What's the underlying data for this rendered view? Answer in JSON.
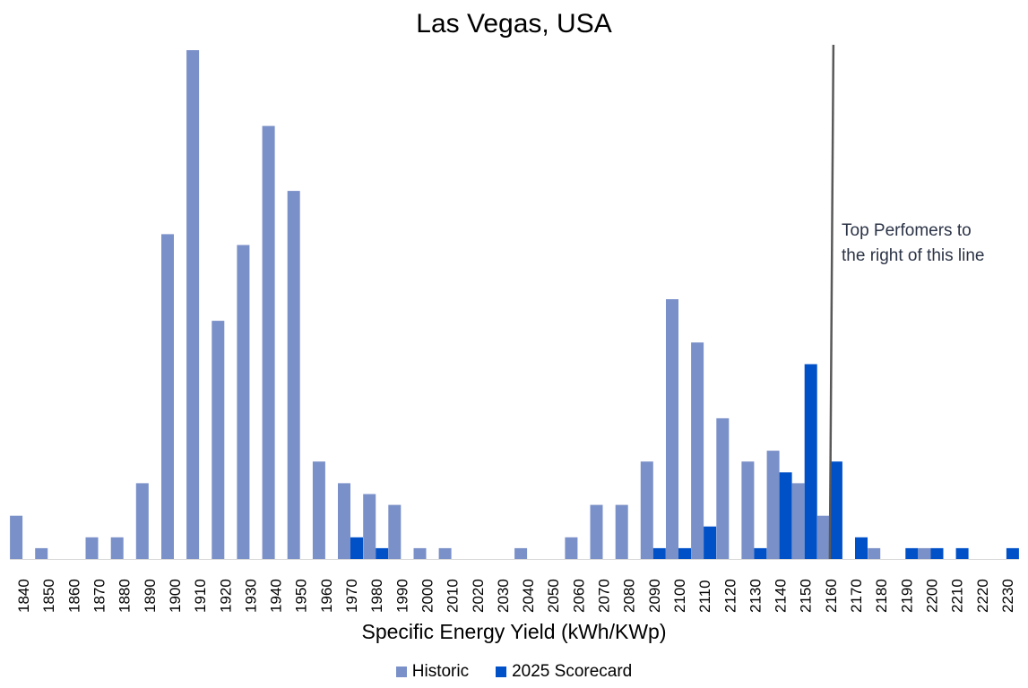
{
  "chart_data": {
    "type": "bar",
    "title": "Las Vegas, USA",
    "xlabel": "Specific Energy Yield (kWh/KWp)",
    "ylabel": "",
    "grid": false,
    "legend_position": "bottom",
    "categories": [
      "1840",
      "1850",
      "1860",
      "1870",
      "1880",
      "1890",
      "1900",
      "1910",
      "1920",
      "1930",
      "1940",
      "1950",
      "1960",
      "1970",
      "1980",
      "1990",
      "2000",
      "2010",
      "2020",
      "2030",
      "2040",
      "2050",
      "2060",
      "2070",
      "2080",
      "2090",
      "2100",
      "2110",
      "2120",
      "2130",
      "2140",
      "2150",
      "2160",
      "2170",
      "2180",
      "2190",
      "2200",
      "2210",
      "2220",
      "2230"
    ],
    "ylim": [
      0,
      47
    ],
    "series": [
      {
        "name": "Historic",
        "color": "#7a90c8",
        "values": [
          4,
          1,
          0,
          2,
          2,
          7,
          30,
          47,
          22,
          29,
          40,
          34,
          9,
          7,
          6,
          5,
          1,
          1,
          0,
          0,
          1,
          0,
          2,
          5,
          5,
          9,
          24,
          20,
          13,
          9,
          10,
          7,
          4,
          0,
          1,
          0,
          1,
          0,
          0,
          0
        ]
      },
      {
        "name": "2025 Scorecard",
        "color": "#0050c8",
        "values": [
          0,
          0,
          0,
          0,
          0,
          0,
          0,
          0,
          0,
          0,
          0,
          0,
          0,
          2,
          1,
          0,
          0,
          0,
          0,
          0,
          0,
          0,
          0,
          0,
          0,
          1,
          1,
          3,
          0,
          1,
          8,
          18,
          9,
          2,
          0,
          1,
          1,
          1,
          0,
          1
        ]
      }
    ],
    "reference_line": {
      "x": 2160,
      "label_lines": [
        "Top Perfomers to",
        "the right of this line"
      ]
    }
  }
}
